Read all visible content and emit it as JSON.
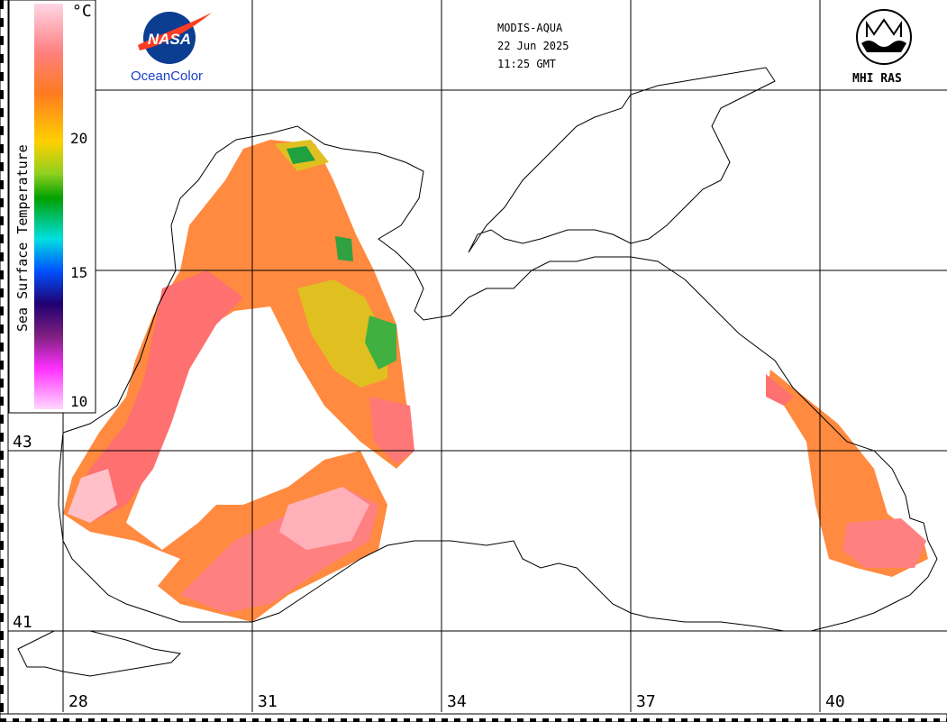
{
  "header": {
    "sensor": "MODIS-AQUA",
    "date": "22 Jun 2025",
    "time": "11:25 GMT"
  },
  "logos": {
    "nasa_text": "NASA",
    "oceancolor": "OceanColor",
    "mhi": "MHI RAS"
  },
  "colorbar": {
    "title": "Sea Surface Temperature",
    "unit": "°C",
    "ticks": [
      "20",
      "15",
      "10"
    ],
    "colors": [
      "#ffd6e6",
      "#ff7070",
      "#ff7a20",
      "#ffd000",
      "#8ed020",
      "#00a000",
      "#00e0e0",
      "#0040ff",
      "#200080",
      "#802080",
      "#ff30ff",
      "#ffd0ff"
    ]
  },
  "grid": {
    "lat_labels": [
      "43",
      "41"
    ],
    "lon_labels": [
      "28",
      "31",
      "34",
      "37",
      "40"
    ]
  },
  "icons": {
    "nasa": "nasa-meatball-icon",
    "mhi": "mhi-ras-emblem-icon"
  }
}
